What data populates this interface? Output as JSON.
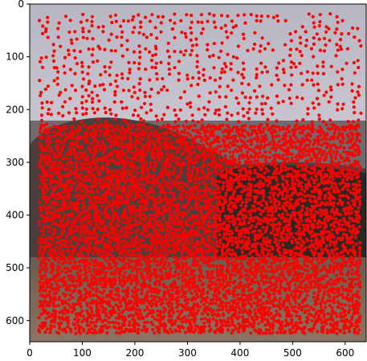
{
  "chart_data": {
    "type": "scatter",
    "title": "",
    "xlabel": "",
    "ylabel": "",
    "xlim": [
      0,
      640
    ],
    "ylim": [
      640,
      0
    ],
    "y_axis_inverted": true,
    "grid": false,
    "legend": "none",
    "background": "photograph of a stone building with a rounded left tower, dark foliage on the right, blue-grey sky above and a dry dirt field in the foreground",
    "marker_color": "#ff0000",
    "x_ticks": [
      0,
      100,
      200,
      300,
      400,
      500,
      600
    ],
    "x_tick_labels": [
      "0",
      "100",
      "200",
      "300",
      "400",
      "500",
      "600"
    ],
    "y_ticks": [
      0,
      100,
      200,
      300,
      400,
      500,
      600
    ],
    "y_tick_labels": [
      "0",
      "100",
      "200",
      "300",
      "400",
      "500",
      "600"
    ],
    "series": [
      {
        "marker": "o",
        "color": "#ff0000",
        "regions": [
          {
            "x": [
              20,
              640
            ],
            "y": [
              20,
              640
            ],
            "density": "sparse grid-like points over the sky"
          },
          {
            "x": [
              20,
              640
            ],
            "y": [
              230,
              640
            ],
            "density": "very dense points over the building and foreground"
          }
        ]
      }
    ]
  }
}
